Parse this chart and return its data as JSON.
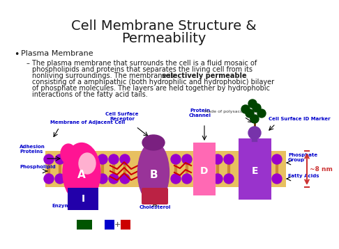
{
  "title": "Cell Membrane Structure &\nPermeability",
  "title_fontsize": 14,
  "title_color": "#1a1a1a",
  "background_color": "#ffffff",
  "bullet_text": "Plasma Membrane",
  "diagram": {
    "phospholipid_head_color": "#9900CC",
    "phospholipid_tail_color": "#CC8833",
    "protein_A_color": "#FF1493",
    "protein_A_light": "#FF69B4",
    "protein_B_color": "#993399",
    "protein_D_color": "#FF69B4",
    "protein_E_color": "#9933CC",
    "enzyme_color": "#2200AA",
    "enzyme_label": "I",
    "nm_bracket_color": "#CC3333",
    "label_color": "#0000CC",
    "green_box_color": "#005500",
    "blue_box_color": "#0000CC",
    "red_box_color": "#CC0000",
    "cholesterol_color_red": "#CC0000",
    "glyco_color": "#004400",
    "nm_label": "~8 nm",
    "mem_bg_color": "#E8C060",
    "white": "#FFFFFF"
  }
}
